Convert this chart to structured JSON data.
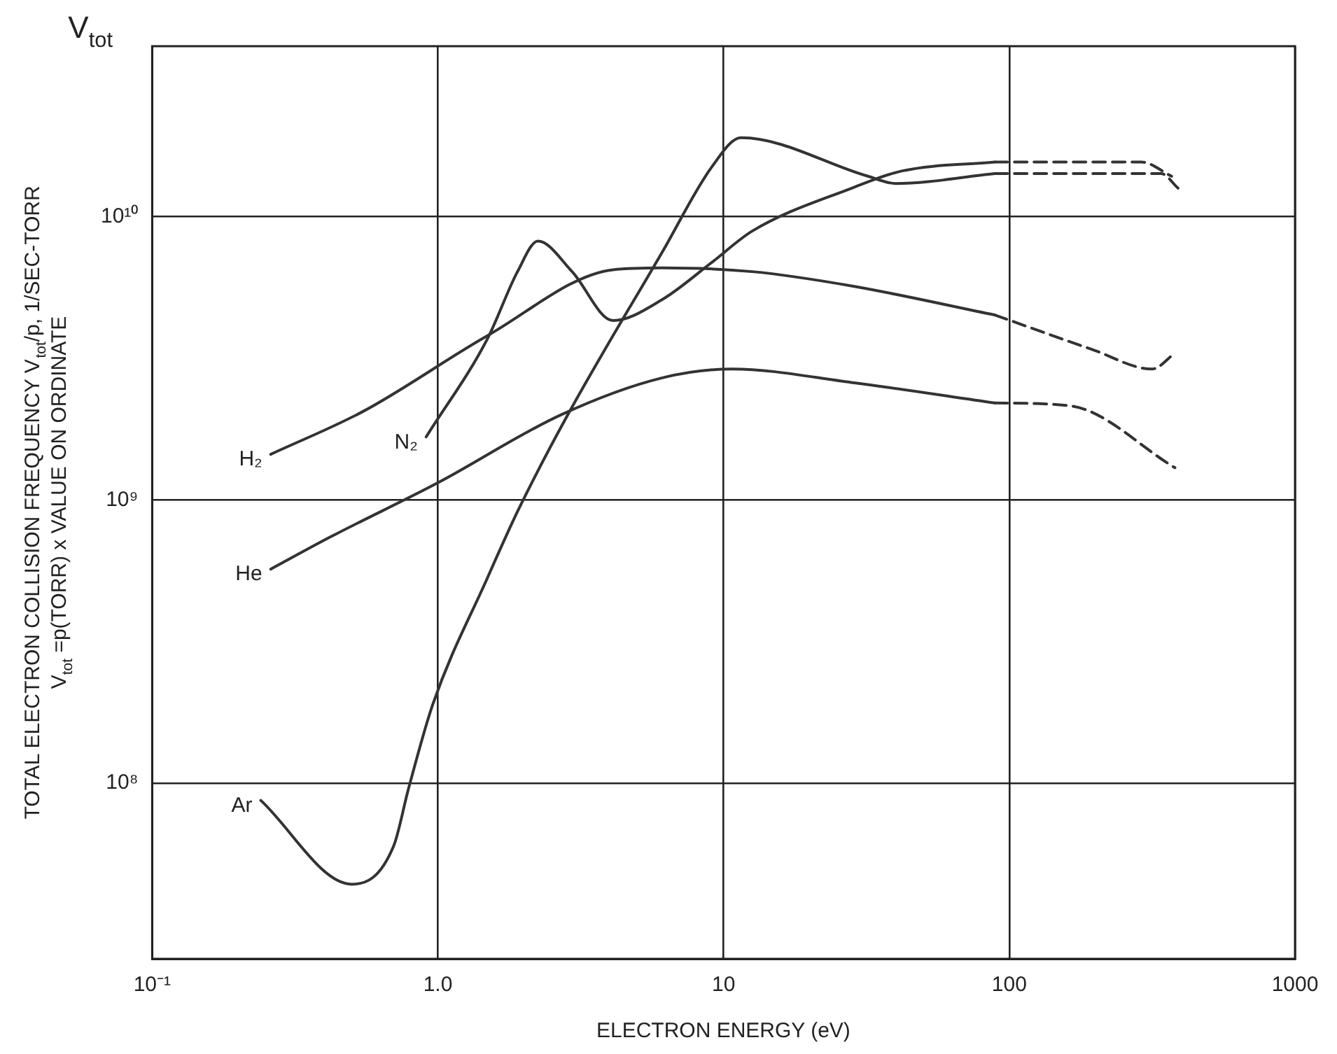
{
  "chart_data": {
    "type": "line",
    "xlabel": "ELECTRON ENERGY (eV)",
    "ylabel": "TOTAL ELECTRON COLLISION FREQUENCY V$_{tot}$/p, 1/SEC-TORR\nV$_{tot}$ =p(TORR) x VALUE ON ORDINATE",
    "annotations": [
      "V$_{tot}$"
    ],
    "log": "xy",
    "grid": true,
    "legend": false,
    "marker": "none",
    "line_style": "solid",
    "xlim": [
      0.1,
      1000
    ],
    "xticks": [
      {
        "value": 0.1,
        "label": "10⁻¹"
      },
      {
        "value": 1,
        "label": "1.0"
      },
      10,
      100,
      1000
    ],
    "ylim": [
      24000000.0,
      40000000000.0
    ],
    "yticks": [
      {
        "value": 100000000.0,
        "label": "10⁸"
      },
      {
        "value": 1000000000.0,
        "label": "10⁹"
      },
      {
        "value": 10000000000.0,
        "label": "10¹⁰"
      }
    ],
    "series": [
      {
        "name": "H₂",
        "color": "#333333",
        "x": [
          0.26,
          0.55,
          1.49,
          4.1,
          6.1,
          12.6,
          28,
          89
        ],
        "values": [
          1450000000.0,
          2060000000.0,
          3800000000.0,
          6500000000.0,
          6600000000.0,
          6400000000.0,
          5700000000.0,
          4500000000.0
        ]
      },
      {
        "color": "#333333",
        "line_style": "dashed",
        "x": [
          89,
          195,
          316,
          380
        ],
        "values": [
          4500000000.0,
          3400000000.0,
          2900000000.0,
          3300000000.0
        ]
      },
      {
        "name": "N₂",
        "color": "#333333",
        "x": [
          0.91,
          1.49,
          1.9,
          2.24,
          2.95,
          4.1,
          6.1,
          9.1,
          12.6,
          28,
          42,
          89
        ],
        "values": [
          1670000000.0,
          3700000000.0,
          6400000000.0,
          8200000000.0,
          6400000000.0,
          4300000000.0,
          5100000000.0,
          6900000000.0,
          8900000000.0,
          12600000000.0,
          14500000000.0,
          15600000000.0
        ]
      },
      {
        "color": "#333333",
        "line_style": "dashed",
        "x": [
          89,
          290,
          370
        ],
        "values": [
          15600000000.0,
          15600000000.0,
          13900000000.0
        ]
      },
      {
        "name": "He",
        "color": "#333333",
        "x": [
          0.26,
          0.42,
          1.0,
          2.7,
          6.1,
          10.7,
          28,
          89
        ],
        "values": [
          570000000.0,
          740000000.0,
          1150000000.0,
          2000000000.0,
          2700000000.0,
          2900000000.0,
          2600000000.0,
          2200000000.0
        ]
      },
      {
        "color": "#333333",
        "line_style": "dashed",
        "x": [
          89,
          163,
          380
        ],
        "values": [
          2200000000.0,
          2150000000.0,
          1300000000.0
        ]
      },
      {
        "name": "Ar",
        "color": "#333333",
        "x": [
          0.24,
          0.5,
          0.7,
          0.79,
          0.96,
          1.49,
          1.9,
          2.85,
          6.1,
          9.1,
          11.5,
          32,
          40,
          89
        ],
        "values": [
          87000000.0,
          44000000.0,
          60000000.0,
          96000000.0,
          190000000.0,
          530000000.0,
          910000000.0,
          2000000000.0,
          7500000000.0,
          15000000000.0,
          19000000000.0,
          13900000000.0,
          13100000000.0,
          14200000000.0
        ]
      },
      {
        "color": "#333333",
        "line_style": "dashed",
        "x": [
          89,
          340,
          390
        ],
        "values": [
          14200000000.0,
          14200000000.0,
          12600000000.0
        ]
      }
    ]
  }
}
